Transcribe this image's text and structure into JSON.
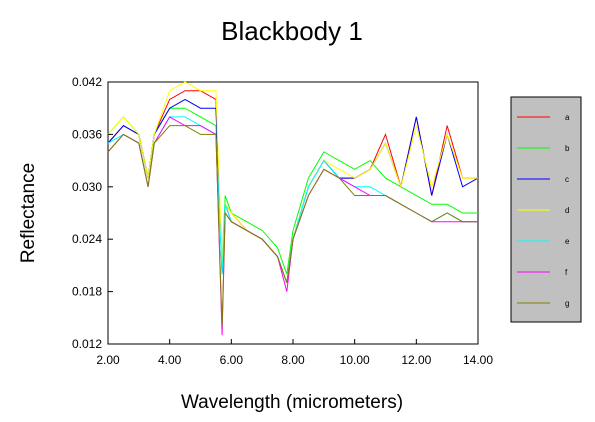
{
  "chart_data": {
    "type": "line",
    "title": "Blackbody 1",
    "xlabel": "Wavelength (micrometers)",
    "ylabel": "Reflectance",
    "xlim": [
      2.0,
      14.0
    ],
    "ylim": [
      0.012,
      0.042
    ],
    "xticks": [
      2.0,
      4.0,
      6.0,
      8.0,
      10.0,
      12.0,
      14.0
    ],
    "xtick_labels": [
      "2.00",
      "4.00",
      "6.00",
      "8.00",
      "10.00",
      "12.00",
      "14.00"
    ],
    "yticks": [
      0.012,
      0.018,
      0.024,
      0.03,
      0.036,
      0.042
    ],
    "ytick_labels": [
      "0.012",
      "0.018",
      "0.024",
      "0.030",
      "0.036",
      "0.042"
    ],
    "grid": false,
    "legend_position": "right",
    "legend_background": "#c0c0c0",
    "x": [
      2.0,
      2.5,
      3.0,
      3.3,
      3.5,
      4.0,
      4.5,
      5.0,
      5.5,
      5.7,
      5.8,
      6.0,
      6.5,
      7.0,
      7.5,
      7.8,
      8.0,
      8.5,
      9.0,
      9.5,
      10.0,
      10.5,
      11.0,
      11.5,
      12.0,
      12.5,
      13.0,
      13.5,
      14.0
    ],
    "series": [
      {
        "name": "a",
        "color": "#ff0000",
        "values": [
          0.035,
          0.037,
          0.036,
          0.031,
          0.036,
          0.04,
          0.041,
          0.041,
          0.04,
          0.02,
          0.028,
          0.027,
          0.025,
          0.024,
          0.022,
          0.019,
          0.024,
          0.03,
          0.033,
          0.031,
          0.031,
          0.032,
          0.036,
          0.03,
          0.038,
          0.029,
          0.037,
          0.031,
          0.031
        ]
      },
      {
        "name": "b",
        "color": "#00ff00",
        "values": [
          0.036,
          0.038,
          0.036,
          0.031,
          0.036,
          0.039,
          0.039,
          0.038,
          0.037,
          0.021,
          0.029,
          0.027,
          0.026,
          0.025,
          0.023,
          0.02,
          0.025,
          0.031,
          0.034,
          0.033,
          0.032,
          0.033,
          0.031,
          0.03,
          0.029,
          0.028,
          0.028,
          0.027,
          0.027
        ]
      },
      {
        "name": "c",
        "color": "#0000ff",
        "values": [
          0.035,
          0.037,
          0.036,
          0.031,
          0.036,
          0.039,
          0.04,
          0.039,
          0.039,
          0.02,
          0.028,
          0.026,
          0.025,
          0.024,
          0.022,
          0.019,
          0.024,
          0.03,
          0.033,
          0.031,
          0.031,
          0.032,
          0.035,
          0.03,
          0.038,
          0.029,
          0.036,
          0.03,
          0.031
        ]
      },
      {
        "name": "d",
        "color": "#ffff00",
        "values": [
          0.036,
          0.038,
          0.036,
          0.031,
          0.036,
          0.041,
          0.042,
          0.041,
          0.041,
          0.021,
          0.028,
          0.027,
          0.025,
          0.024,
          0.022,
          0.019,
          0.024,
          0.03,
          0.033,
          0.032,
          0.031,
          0.032,
          0.035,
          0.03,
          0.037,
          0.03,
          0.036,
          0.031,
          0.031
        ]
      },
      {
        "name": "e",
        "color": "#00ffff",
        "values": [
          0.035,
          0.036,
          0.035,
          0.03,
          0.035,
          0.038,
          0.038,
          0.037,
          0.036,
          0.02,
          0.028,
          0.026,
          0.025,
          0.024,
          0.022,
          0.019,
          0.024,
          0.03,
          0.033,
          0.031,
          0.03,
          0.03,
          0.029,
          0.028,
          0.027,
          0.026,
          0.027,
          0.026,
          0.026
        ]
      },
      {
        "name": "f",
        "color": "#ff00ff",
        "values": [
          0.034,
          0.036,
          0.035,
          0.03,
          0.035,
          0.038,
          0.037,
          0.037,
          0.036,
          0.013,
          0.027,
          0.026,
          0.025,
          0.024,
          0.022,
          0.018,
          0.024,
          0.029,
          0.032,
          0.031,
          0.03,
          0.029,
          0.029,
          0.028,
          0.027,
          0.026,
          0.026,
          0.026,
          0.026
        ]
      },
      {
        "name": "g",
        "color": "#808000",
        "values": [
          0.034,
          0.036,
          0.035,
          0.03,
          0.035,
          0.037,
          0.037,
          0.036,
          0.036,
          0.014,
          0.027,
          0.026,
          0.025,
          0.024,
          0.022,
          0.019,
          0.024,
          0.029,
          0.032,
          0.031,
          0.029,
          0.029,
          0.029,
          0.028,
          0.027,
          0.026,
          0.027,
          0.026,
          0.026
        ]
      }
    ]
  }
}
